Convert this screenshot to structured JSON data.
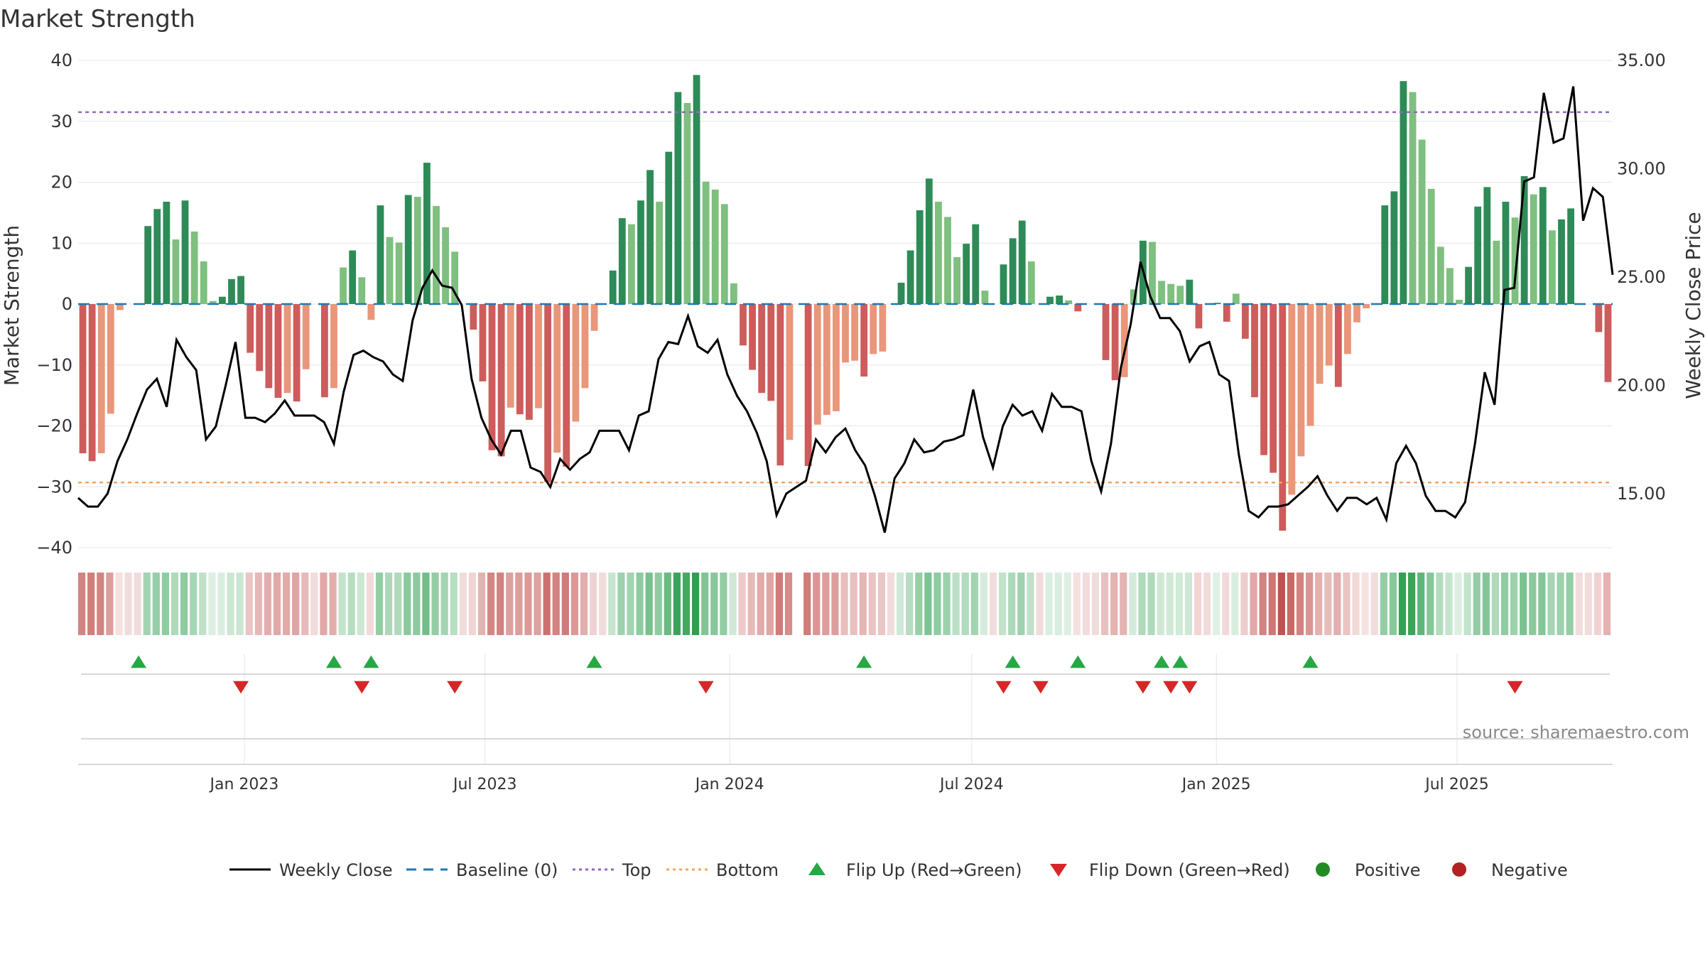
{
  "chart_data": {
    "type": "bar",
    "title": "Market Strength",
    "ylabel_left": "Market Strength",
    "ylabel_right": "Weekly Close Price",
    "ylim_left": [
      -40,
      40
    ],
    "ylim_right": [
      12.5,
      35.0
    ],
    "yticks_left": [
      "40",
      "30",
      "20",
      "10",
      "0",
      "−10",
      "−20",
      "−30",
      "−40"
    ],
    "yticks_right": [
      "35.00",
      "30.00",
      "25.00",
      "20.00",
      "15.00"
    ],
    "ytick_values_left": [
      40,
      30,
      20,
      10,
      0,
      -10,
      -20,
      -30,
      -40
    ],
    "ytick_values_right": [
      35,
      30,
      25,
      20,
      15
    ],
    "top_line": 31.5,
    "bottom_line": -29.3,
    "x_start": "2022-08-29",
    "x_end": "2025-10-26",
    "x_ticks": [
      {
        "label": "Jan 2023",
        "date": "2023-01-01"
      },
      {
        "label": "Jul 2023",
        "date": "2023-07-01"
      },
      {
        "label": "Jan 2024",
        "date": "2024-01-01"
      },
      {
        "label": "Jul 2024",
        "date": "2024-07-01"
      },
      {
        "label": "Jan 2025",
        "date": "2025-01-01"
      },
      {
        "label": "Jul 2025",
        "date": "2025-07-01"
      }
    ],
    "strength": [
      -24.5,
      -25.8,
      -24.5,
      -18,
      -1,
      0,
      0,
      12.8,
      15.6,
      16.8,
      10.6,
      17,
      11.9,
      7,
      0.5,
      1.2,
      4.1,
      4.6,
      -8,
      -11,
      -13.8,
      -15.4,
      -14.6,
      -16,
      -10.7,
      0,
      -15.3,
      -13.8,
      6,
      8.8,
      4.4,
      -2.6,
      16.2,
      11,
      10.1,
      17.9,
      17.6,
      23.2,
      16.1,
      12.6,
      8.6,
      0,
      -4.2,
      -12.7,
      -24,
      -25,
      -17,
      -18.1,
      -19,
      -17.1,
      -29.2,
      -24.4,
      -26.7,
      -19.3,
      -13.8,
      -4.4,
      0,
      5.5,
      14.1,
      13.1,
      17,
      22,
      16.8,
      25,
      34.8,
      33,
      37.6,
      20.1,
      18.8,
      16.4,
      3.4,
      -6.8,
      -10.8,
      -14.6,
      -15.9,
      -26.5,
      -22.3,
      0,
      -26.6,
      -19.8,
      -18.2,
      -17.6,
      -9.6,
      -9.3,
      -11.9,
      -8.2,
      -7.8,
      0,
      3.5,
      8.8,
      15.4,
      20.6,
      16.8,
      14.3,
      7.7,
      9.9,
      13.1,
      2.2,
      0,
      6.5,
      10.8,
      13.7,
      7,
      0,
      1.2,
      1.4,
      0.6,
      -1.2,
      0,
      0,
      -9.2,
      -12.5,
      -12,
      2.4,
      10.4,
      10.2,
      3.8,
      3.3,
      3,
      4,
      -4,
      0,
      0.2,
      -2.9,
      1.7,
      -5.7,
      -15.3,
      -24.8,
      -27.7,
      -37.2,
      -31.3,
      -25,
      -20,
      -13.1,
      -10.1,
      -13.6,
      -8.2,
      -3,
      -0.7,
      0,
      16.2,
      18.5,
      36.6,
      34.8,
      27,
      18.9,
      9.4,
      5.9,
      0.7,
      6.1,
      16,
      19.2,
      10.4,
      16.8,
      14.2,
      21,
      18,
      19.2,
      12.1,
      13.9,
      15.7,
      0,
      0,
      -4.6,
      -12.8
    ],
    "strength_note": "[-24.5,-25.8,-24.5,-18,-1,0,0,12.8,15.6,16.8,10.6,17,11.9,7,0.5,1.2,4.1,4.6,-8,-11,-13.8,-15.4,-14.6,-16,-10.7,0,-15.3,-13.8,6,8.8,4.4,-2.6,16.2,11,10.1,17.9,17.6,23.2,16.1,12.6,8.6,0,-4.2,-12.7,-24,-25,-17,-18.1,-19,-17.1,-29.2,-24.4,-26.7,-19.3,-13.8,-4.4,0,5.5,14.1,13.1,17,22,16.8,25,34.8,33,37.6,20.1,18.8,16.4,3.4,-6.8,-10.8,-14.6,-15.9,-26.5,-22.3,0,-26.6,-19.8,-18.2,-17.6,-9.6,-9.3,-11.9,-8.2,-7.8,0,3.5,8.8,15.4,20.6,16.8,14.3,7.7,9.9,13.1,2.2,0,6.5,10.8,13.7,7,0,1.2,1.4,0.6,-1.2,0,0,-9.2,-12.5,-12,2.4,10.4,10.2,3.8,3.3,3,4,-4,0,0.2,-2.9,1.7,-5.7,-15.3,-24.8,-27.7,-37.2,-31.3,-25,-20,-13.1,-10.1,-13.6,-8.2,-3,-0.7,0,16.2,18.5,36.6,34.8,27,18.9,9.4,5.9,0.7,6.1,16,19.2,10.4,16.8,14.2,21,18,19.2,12.1,13.9,15.7,0,0,-4.6,-12.8]",
    "close": [
      14.8,
      14.4,
      14.4,
      15,
      16.5,
      17.5,
      18.7,
      19.8,
      20.3,
      19,
      22.1,
      21.3,
      20.7,
      17.5,
      18.1,
      20,
      22,
      18.5,
      18.5,
      18.3,
      18.7,
      19.3,
      18.6,
      18.6,
      18.6,
      18.3,
      17.3,
      19.7,
      21.4,
      21.6,
      21.3,
      21.1,
      20.5,
      20.2,
      23,
      24.5,
      25.3,
      24.6,
      24.5,
      23.7,
      20.3,
      18.5,
      17.5,
      16.8,
      17.9,
      17.9,
      16.2,
      16,
      15.3,
      16.6,
      16.1,
      16.6,
      16.9,
      17.9,
      17.9,
      17.9,
      17,
      18.6,
      18.8,
      21.2,
      22,
      21.9,
      23.2,
      21.8,
      21.5,
      22.1,
      20.5,
      19.5,
      18.8,
      17.8,
      16.5,
      14,
      15,
      15.3,
      15.6,
      17.5,
      16.9,
      17.6,
      18,
      17,
      16.3,
      14.9,
      13.2,
      15.7,
      16.4,
      17.5,
      16.9,
      17,
      17.4,
      17.5,
      17.7,
      19.8,
      17.6,
      16.2,
      18.1,
      19.1,
      18.6,
      18.8,
      17.9,
      19.6,
      19,
      19,
      18.8,
      16.5,
      15.1,
      17.3,
      20.8,
      22.8,
      25.7,
      24.1,
      23.1,
      23.1,
      22.5,
      21.1,
      21.8,
      22,
      20.5,
      20.2,
      16.8,
      14.2,
      13.9,
      14.4,
      14.4,
      14.5,
      14.9,
      15.3,
      15.8,
      14.9,
      14.2,
      14.8,
      14.8,
      14.5,
      14.8,
      13.8,
      16.4,
      17.2,
      16.4,
      14.9,
      14.2,
      14.2,
      13.9,
      14.6,
      17.3,
      20.6,
      19.1,
      24.4,
      24.5,
      29.4,
      29.6,
      33.5,
      31.2,
      31.4,
      33.8,
      27.6,
      29.1,
      28.7,
      25.1
    ],
    "close_note": "[14.8,14.4,14.4,15,16.5,17.5,18.7,19.8,20.3,19,22.1,21.3,20.7,17.5,18.1,20,22,18.5,18.5,18.3,18.7,19.3,18.6,18.6,18.6,18.3,17.3,19.7,21.4,21.6,21.3,21.1,20.5,20.2,23,24.5,25.3,24.6,24.5,23.7,20.3,18.5,17.5,16.8,17.9,17.9,16.2,16,15.3,16.6,16.1,16.6,16.9,17.9,17.9,17.9,17,18.6,18.8,21.2,22,21.9,23.2,21.8,21.5,22.1,20.5,19.5,18.8,17.8,16.5,14,15,15.3,15.6,17.5,16.9,17.6,18,17,16.3,14.9,13.2,15.7,16.4,17.5,16.9,17,17.4,17.5,17.7,19.8,17.6,16.2,18.1,19.1,18.6,18.8,17.9,19.6,19,19,18.8,16.5,15.1,17.3,20.8,22.8,25.7,24.1,23.1,23.1,22.5,21.1,21.8,22,20.5,20.2,16.8,14.2,13.9,14.4,14.4,14.5,14.9,15.3,15.8,14.9,14.2,14.8,14.8,14.5,14.8,13.8,16.4,17.2,16.4,14.9,14.2,14.2,13.9,14.6,17.3,20.6,19.1,24.4,24.5,29.4,29.6,33.5,31.2,31.4,33.8,27.6,29.1,28.7,25.1]",
    "flips_up": [
      6,
      27,
      31,
      55,
      84,
      100,
      107,
      116,
      118,
      132
    ],
    "flips_down": [
      17,
      30,
      40,
      67,
      99,
      103,
      114,
      117,
      119,
      154
    ],
    "legend": [
      "Weekly Close",
      "Baseline (0)",
      "Top",
      "Bottom",
      "Flip Up (Red→Green)",
      "Flip Down (Green→Red)",
      "Positive",
      "Negative"
    ],
    "source": "source: sharemaestro.com",
    "colors": {
      "strong_green": "#2e8b57",
      "light_green": "#7fbf7f",
      "strong_red": "#cd5c5c",
      "light_red": "#e9967a",
      "baseline": "#1f77b4",
      "top": "#9467bd",
      "bottom": "#f4a460",
      "close": "#000000",
      "flip_up": "#28a745",
      "flip_down": "#d62728",
      "positive": "#228b22",
      "negative": "#b22222"
    }
  }
}
